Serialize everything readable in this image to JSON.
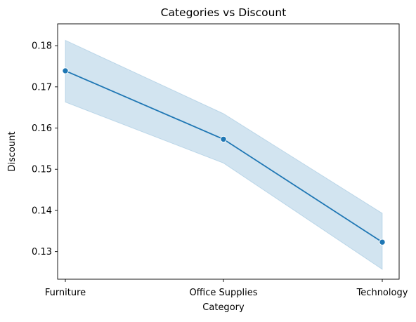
{
  "chart_data": {
    "type": "line",
    "title": "Categories vs Discount",
    "xlabel": "Category",
    "ylabel": "Discount",
    "categories": [
      "Furniture",
      "Office Supplies",
      "Technology"
    ],
    "series": [
      {
        "values": [
          0.1739,
          0.1573,
          0.1323
        ],
        "ci_lower": [
          0.1663,
          0.1515,
          0.1257
        ],
        "ci_upper": [
          0.1813,
          0.1635,
          0.1393
        ],
        "color": "#1f77b4",
        "band_color": "#1f77b4",
        "marker": "circle"
      }
    ],
    "ylim": [
      0.1233,
      0.1853
    ],
    "yticks": [
      0.13,
      0.14,
      0.15,
      0.16,
      0.17,
      0.18
    ],
    "ytick_labels": [
      "0.13",
      "0.14",
      "0.15",
      "0.16",
      "0.17",
      "0.18"
    ],
    "grid": false,
    "legend": "none"
  }
}
